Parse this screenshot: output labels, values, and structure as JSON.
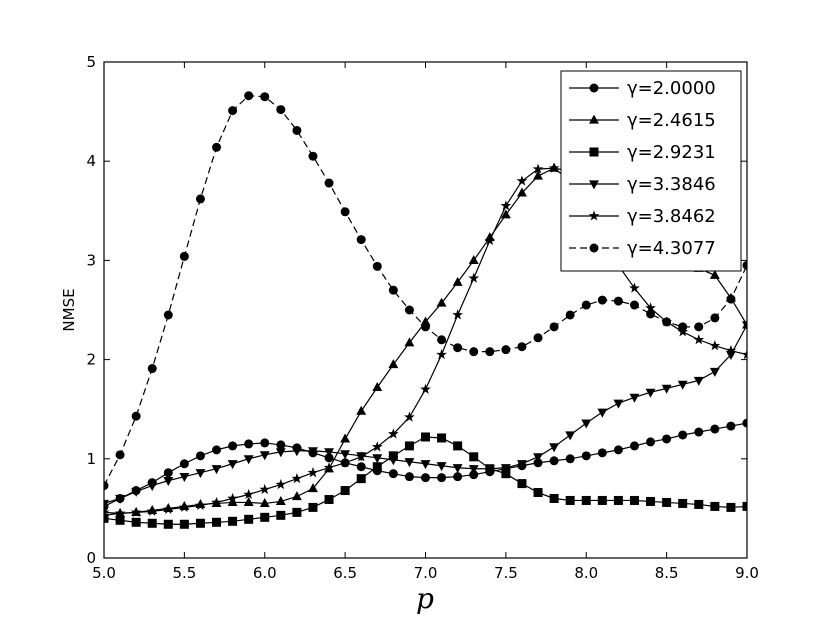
{
  "chart_data": {
    "type": "line",
    "title": "",
    "xlabel": "p",
    "ylabel": "NMSE",
    "xlim": [
      5.0,
      9.0
    ],
    "ylim": [
      0,
      5
    ],
    "xticks": [
      "5.0",
      "5.5",
      "6.0",
      "6.5",
      "7.0",
      "7.5",
      "8.0",
      "8.5",
      "9.0"
    ],
    "yticks": [
      "0",
      "1",
      "2",
      "3",
      "4",
      "5"
    ],
    "grid": false,
    "legend_position": "top-right",
    "x": [
      5.0,
      5.1,
      5.2,
      5.3,
      5.4,
      5.5,
      5.6,
      5.7,
      5.8,
      5.9,
      6.0,
      6.1,
      6.2,
      6.3,
      6.4,
      6.5,
      6.6,
      6.7,
      6.8,
      6.9,
      7.0,
      7.1,
      7.2,
      7.3,
      7.4,
      7.5,
      7.6,
      7.7,
      7.8,
      7.9,
      8.0,
      8.1,
      8.2,
      8.3,
      8.4,
      8.5,
      8.6,
      8.7,
      8.8,
      8.9,
      9.0
    ],
    "series": [
      {
        "name": "γ=2.0000",
        "marker": "circle",
        "dash": "solid",
        "values": [
          0.52,
          0.6,
          0.68,
          0.76,
          0.86,
          0.95,
          1.03,
          1.09,
          1.13,
          1.15,
          1.16,
          1.14,
          1.11,
          1.06,
          1.01,
          0.96,
          0.92,
          0.88,
          0.85,
          0.82,
          0.81,
          0.81,
          0.82,
          0.84,
          0.87,
          0.9,
          0.93,
          0.96,
          0.98,
          1.0,
          1.03,
          1.06,
          1.09,
          1.13,
          1.17,
          1.2,
          1.24,
          1.27,
          1.3,
          1.33,
          1.36
        ]
      },
      {
        "name": "γ=2.4615",
        "marker": "triangle-up",
        "dash": "solid",
        "values": [
          0.43,
          0.45,
          0.46,
          0.48,
          0.5,
          0.52,
          0.54,
          0.55,
          0.56,
          0.56,
          0.55,
          0.57,
          0.62,
          0.7,
          0.9,
          1.2,
          1.48,
          1.72,
          1.95,
          2.17,
          2.38,
          2.57,
          2.78,
          3.0,
          3.23,
          3.46,
          3.68,
          3.85,
          3.93,
          3.9,
          3.8,
          3.65,
          3.5,
          3.38,
          3.27,
          3.15,
          3.02,
          2.92,
          2.85,
          2.62,
          2.35
        ]
      },
      {
        "name": "γ=2.9231",
        "marker": "square",
        "dash": "solid",
        "values": [
          0.4,
          0.38,
          0.36,
          0.35,
          0.34,
          0.34,
          0.35,
          0.36,
          0.37,
          0.39,
          0.41,
          0.43,
          0.46,
          0.51,
          0.59,
          0.68,
          0.8,
          0.92,
          1.03,
          1.13,
          1.22,
          1.21,
          1.13,
          1.02,
          0.9,
          0.85,
          0.75,
          0.66,
          0.6,
          0.58,
          0.58,
          0.58,
          0.58,
          0.58,
          0.57,
          0.56,
          0.55,
          0.54,
          0.52,
          0.51,
          0.52
        ]
      },
      {
        "name": "γ=3.3846",
        "marker": "triangle-down",
        "dash": "solid",
        "values": [
          0.55,
          0.6,
          0.67,
          0.73,
          0.78,
          0.82,
          0.86,
          0.9,
          0.95,
          1.0,
          1.04,
          1.07,
          1.08,
          1.08,
          1.07,
          1.05,
          1.03,
          1.01,
          0.99,
          0.97,
          0.95,
          0.93,
          0.91,
          0.9,
          0.9,
          0.91,
          0.95,
          1.02,
          1.12,
          1.24,
          1.36,
          1.47,
          1.56,
          1.62,
          1.67,
          1.71,
          1.75,
          1.79,
          1.88,
          2.05,
          2.35
        ]
      },
      {
        "name": "γ=3.8462",
        "marker": "star",
        "dash": "solid",
        "values": [
          0.46,
          0.45,
          0.46,
          0.47,
          0.49,
          0.51,
          0.53,
          0.56,
          0.6,
          0.64,
          0.69,
          0.74,
          0.8,
          0.86,
          0.91,
          0.96,
          1.02,
          1.12,
          1.25,
          1.42,
          1.7,
          2.05,
          2.45,
          2.82,
          3.2,
          3.55,
          3.8,
          3.92,
          3.93,
          3.8,
          3.55,
          3.22,
          2.95,
          2.72,
          2.52,
          2.38,
          2.28,
          2.2,
          2.14,
          2.09,
          2.05
        ]
      },
      {
        "name": "γ=4.3077",
        "marker": "circle",
        "dash": "dashed",
        "values": [
          0.73,
          1.04,
          1.43,
          1.91,
          2.45,
          3.04,
          3.62,
          4.14,
          4.51,
          4.66,
          4.65,
          4.52,
          4.31,
          4.05,
          3.78,
          3.49,
          3.21,
          2.94,
          2.7,
          2.5,
          2.33,
          2.2,
          2.12,
          2.08,
          2.08,
          2.1,
          2.13,
          2.22,
          2.33,
          2.45,
          2.55,
          2.6,
          2.59,
          2.55,
          2.46,
          2.38,
          2.33,
          2.33,
          2.42,
          2.61,
          2.95
        ]
      }
    ]
  }
}
